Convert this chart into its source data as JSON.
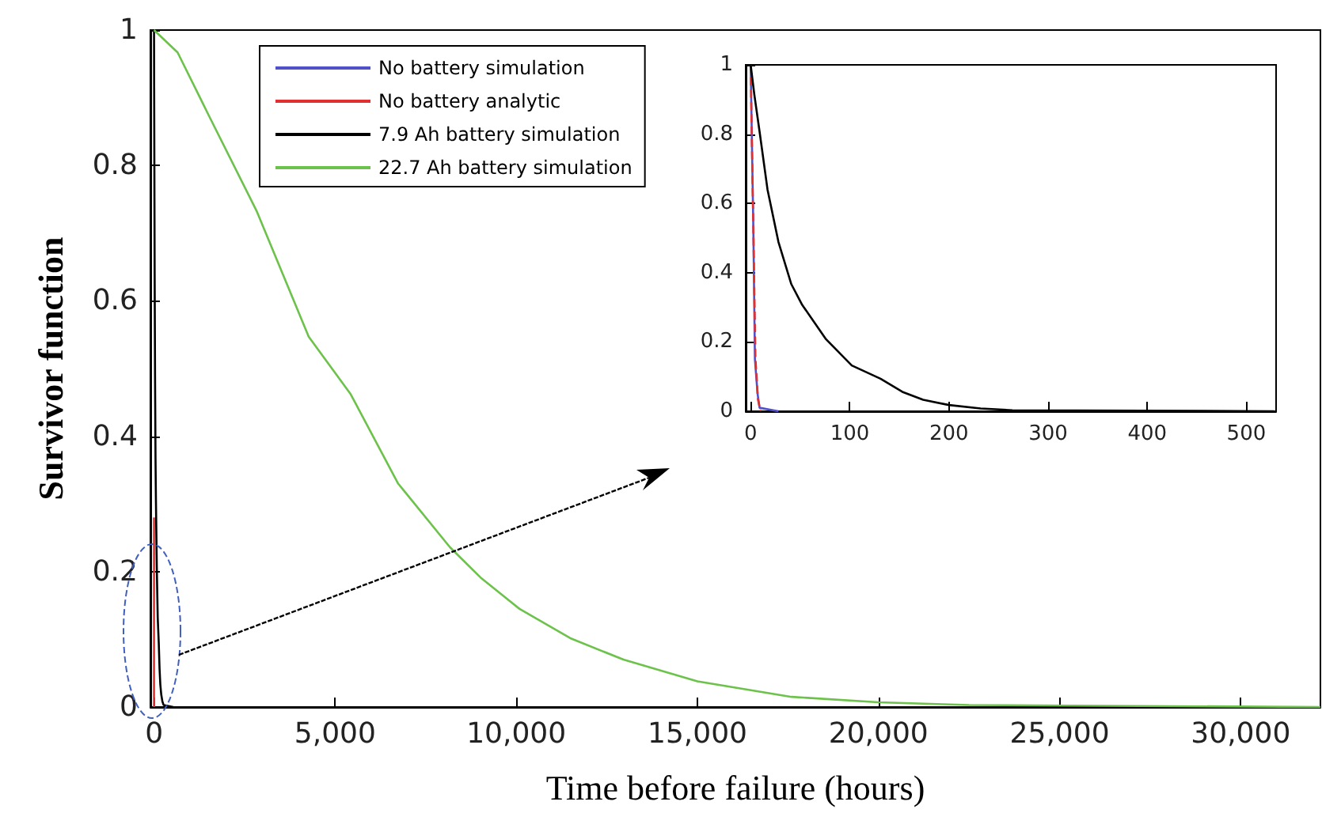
{
  "chart_data": [
    {
      "type": "line",
      "xlabel": "Time before failure (hours)",
      "ylabel": "Survivor function",
      "legend": "top",
      "marker": "none",
      "grid": false,
      "xlim": [
        -100,
        32200
      ],
      "xticks": [
        0,
        {
          "value": 5000,
          "label": "5,000"
        },
        {
          "value": 10000,
          "label": "10,000"
        },
        {
          "value": 15000,
          "label": "15,000"
        },
        {
          "value": 20000,
          "label": "20,000"
        },
        {
          "value": 25000,
          "label": "25,000"
        },
        {
          "value": 30000,
          "label": "30,000"
        }
      ],
      "ylim": [
        0,
        1
      ],
      "yticks": [
        0,
        0.2,
        0.4,
        0.6,
        0.8,
        1
      ],
      "series": [
        {
          "name": "No battery simulation",
          "color": "#5050c8"
        },
        {
          "name": "No battery analytic",
          "color": "#e03030",
          "x": [
            0,
            0
          ],
          "values": [
            0.28,
            0
          ]
        },
        {
          "name": "7.9 Ah battery simulation",
          "color": "#000000",
          "x": [
            0,
            3.7,
            9,
            17,
            28,
            41,
            52,
            76,
            102,
            131,
            153,
            174,
            200,
            232,
            264,
            528
          ],
          "values": [
            1,
            0.914,
            0.807,
            0.64,
            0.489,
            0.367,
            0.307,
            0.208,
            0.132,
            0.094,
            0.056,
            0.033,
            0.018,
            0.008,
            0.003,
            0
          ]
        },
        {
          "name": "22.7 Ah battery simulation",
          "color": "#6cc24a",
          "x": [
            0,
            650,
            1520,
            2830,
            4270,
            5430,
            6740,
            8170,
            9040,
            10090,
            11520,
            12960,
            15000,
            17600,
            20000,
            22500,
            32200
          ],
          "values": [
            1,
            0.967,
            0.873,
            0.733,
            0.547,
            0.462,
            0.33,
            0.236,
            0.19,
            0.145,
            0.101,
            0.07,
            0.038,
            0.015,
            0.007,
            0.003,
            0
          ]
        }
      ]
    },
    {
      "type": "line",
      "marker": "none",
      "grid": false,
      "legend": false,
      "xlim": [
        -5,
        530
      ],
      "xticks": [
        0,
        100,
        200,
        300,
        400,
        500
      ],
      "ylim": [
        0,
        1
      ],
      "yticks": [
        0,
        0.2,
        0.4,
        0.6,
        0.8,
        1
      ],
      "series": [
        {
          "color": "#5050c8",
          "x": [
            0,
            2.7,
            4.3,
            7,
            9,
            28
          ],
          "values": [
            1,
            0.53,
            0.15,
            0.05,
            0.01,
            0
          ]
        },
        {
          "color": "#e03030",
          "line_style": "dashed",
          "x": [
            0,
            1,
            2.7,
            4.8,
            7.4,
            10
          ],
          "values": [
            1,
            0.81,
            0.53,
            0.155,
            0.033,
            0
          ]
        },
        {
          "color": "#000000",
          "x": [
            0,
            3.7,
            9,
            17,
            28,
            41,
            52,
            76,
            102,
            131,
            153,
            174,
            200,
            232,
            264,
            528
          ],
          "values": [
            1,
            0.914,
            0.807,
            0.64,
            0.489,
            0.367,
            0.307,
            0.208,
            0.132,
            0.094,
            0.056,
            0.033,
            0.018,
            0.008,
            0.003,
            0
          ]
        }
      ]
    }
  ]
}
